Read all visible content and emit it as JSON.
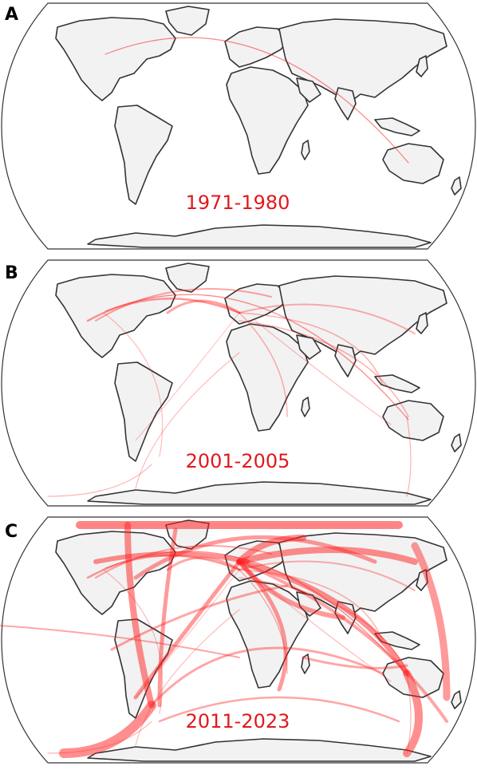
{
  "panels": [
    {
      "letter": "A",
      "period": "1971-1980",
      "density": 1
    },
    {
      "letter": "B",
      "period": "2001-2005",
      "density": 2
    },
    {
      "letter": "C",
      "period": "2011-2023",
      "density": 3
    }
  ],
  "colors": {
    "land": "#f2f2f2",
    "coastline": "#333333",
    "route": "#ff2020",
    "label": "#e0191d"
  }
}
